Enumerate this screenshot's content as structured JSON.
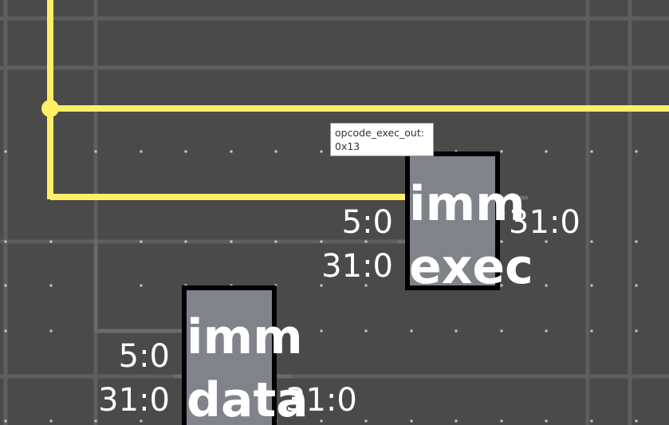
{
  "colors": {
    "background": "#4a4a4a",
    "grid_line": "#5e5e5e",
    "grid_dot": "#c8c8c8",
    "bus_wire": "#ffee66",
    "plain_wire": "#6a6a6a",
    "component_fill": "#80838a",
    "component_border": "#000000",
    "text": "#ffffff"
  },
  "components": {
    "imm_exec": {
      "title_line1": "imm",
      "title_line2": "exec",
      "input_top_label": "5:0",
      "input_bottom_label": "31:0",
      "output_label": "31:0"
    },
    "imm_data": {
      "title_line1": "imm",
      "title_line2": "data",
      "input_top_label": "5:0",
      "input_bottom_label": "31:0",
      "output_label": "31:0"
    }
  },
  "tooltip": {
    "signal_name": "opcode_exec_out:",
    "value": "0x13"
  }
}
